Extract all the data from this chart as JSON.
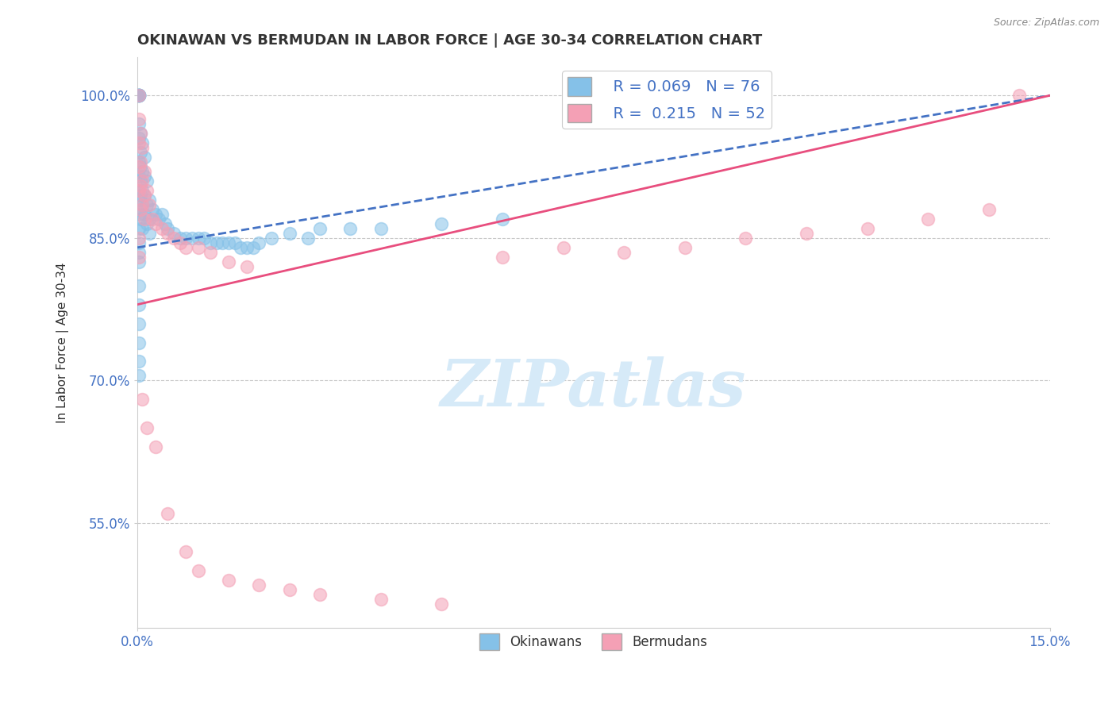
{
  "title": "OKINAWAN VS BERMUDAN IN LABOR FORCE | AGE 30-34 CORRELATION CHART",
  "source": "Source: ZipAtlas.com",
  "ylabel": "In Labor Force | Age 30-34",
  "xlim": [
    0.0,
    15.0
  ],
  "ylim": [
    44.0,
    104.0
  ],
  "xticks": [
    0.0,
    15.0
  ],
  "xticklabels": [
    "0.0%",
    "15.0%"
  ],
  "yticks": [
    55.0,
    70.0,
    85.0,
    100.0
  ],
  "yticklabels": [
    "55.0%",
    "70.0%",
    "85.0%",
    "100.0%"
  ],
  "legend_R1": "R = 0.069",
  "legend_N1": "N = 76",
  "legend_R2": "R =  0.215",
  "legend_N2": "N = 52",
  "okinawan_color": "#85C1E8",
  "bermudan_color": "#F4A0B5",
  "trend_okinawan_color": "#4472C4",
  "trend_bermudan_color": "#E84E7E",
  "background_color": "#FFFFFF",
  "grid_color": "#C8C8C8",
  "title_color": "#333333",
  "axis_label_color": "#333333",
  "tick_color": "#4472C4",
  "watermark_text": "ZIPatlas",
  "watermark_color": "#D6EAF8",
  "okinawan_x": [
    0.02,
    0.02,
    0.02,
    0.02,
    0.02,
    0.02,
    0.02,
    0.02,
    0.02,
    0.02,
    0.05,
    0.05,
    0.05,
    0.05,
    0.05,
    0.05,
    0.05,
    0.08,
    0.08,
    0.08,
    0.08,
    0.08,
    0.12,
    0.12,
    0.12,
    0.12,
    0.15,
    0.15,
    0.15,
    0.2,
    0.2,
    0.2,
    0.25,
    0.3,
    0.35,
    0.4,
    0.45,
    0.5,
    0.6,
    0.7,
    0.8,
    0.9,
    1.0,
    1.1,
    1.2,
    1.3,
    1.4,
    1.5,
    1.6,
    1.7,
    1.8,
    1.9,
    2.0,
    2.2,
    2.5,
    2.8,
    3.0,
    3.5,
    4.0,
    5.0,
    6.0,
    0.02,
    0.02,
    0.02,
    0.02,
    0.02,
    0.02,
    0.02,
    0.02,
    0.02,
    0.02,
    0.02,
    0.02,
    0.02,
    0.02,
    0.02
  ],
  "okinawan_y": [
    100.0,
    100.0,
    100.0,
    100.0,
    100.0,
    100.0,
    100.0,
    100.0,
    97.0,
    95.5,
    96.0,
    94.0,
    92.5,
    91.0,
    89.5,
    88.0,
    87.0,
    95.0,
    92.0,
    90.0,
    88.5,
    86.0,
    93.5,
    91.5,
    89.5,
    87.5,
    91.0,
    88.5,
    86.5,
    89.0,
    87.0,
    85.5,
    88.0,
    87.5,
    87.0,
    87.5,
    86.5,
    86.0,
    85.5,
    85.0,
    85.0,
    85.0,
    85.0,
    85.0,
    84.5,
    84.5,
    84.5,
    84.5,
    84.5,
    84.0,
    84.0,
    84.0,
    84.5,
    85.0,
    85.5,
    85.0,
    86.0,
    86.0,
    86.0,
    86.5,
    87.0,
    93.0,
    91.5,
    90.0,
    89.0,
    87.5,
    86.0,
    84.5,
    83.5,
    82.5,
    80.0,
    78.0,
    76.0,
    74.0,
    72.0,
    70.5
  ],
  "bermudan_x": [
    0.02,
    0.02,
    0.02,
    0.02,
    0.02,
    0.05,
    0.05,
    0.05,
    0.05,
    0.08,
    0.08,
    0.08,
    0.12,
    0.12,
    0.12,
    0.15,
    0.2,
    0.25,
    0.3,
    0.4,
    0.5,
    0.6,
    0.7,
    0.8,
    1.0,
    1.2,
    1.5,
    1.8,
    0.08,
    0.15,
    0.3,
    0.5,
    0.8,
    1.0,
    1.5,
    2.0,
    2.5,
    3.0,
    4.0,
    5.0,
    6.0,
    7.0,
    8.0,
    9.0,
    10.0,
    11.0,
    12.0,
    13.0,
    14.0,
    14.5,
    0.02,
    0.02
  ],
  "bermudan_y": [
    100.0,
    97.5,
    95.0,
    92.5,
    90.0,
    96.0,
    93.0,
    90.5,
    88.0,
    94.5,
    91.0,
    88.5,
    92.0,
    89.5,
    87.0,
    90.0,
    88.5,
    87.0,
    86.5,
    86.0,
    85.5,
    85.0,
    84.5,
    84.0,
    84.0,
    83.5,
    82.5,
    82.0,
    68.0,
    65.0,
    63.0,
    56.0,
    52.0,
    50.0,
    49.0,
    48.5,
    48.0,
    47.5,
    47.0,
    46.5,
    83.0,
    84.0,
    83.5,
    84.0,
    85.0,
    85.5,
    86.0,
    87.0,
    88.0,
    100.0,
    85.0,
    83.0
  ]
}
